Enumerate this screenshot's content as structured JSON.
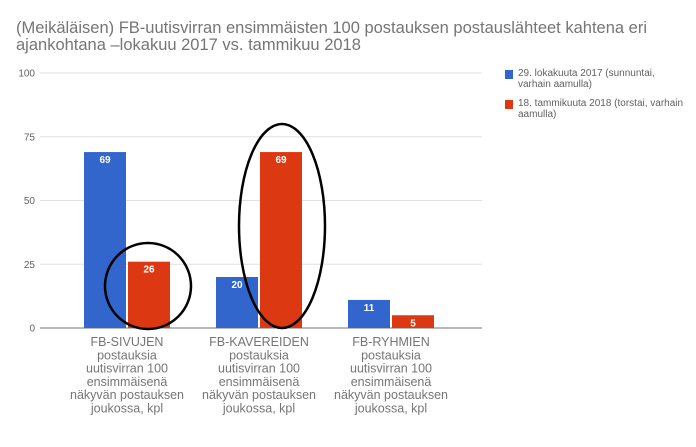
{
  "chart_data": {
    "type": "bar",
    "title": "(Meikäläisen) FB-uutisvirran ensimmäisten 100 postauksen postauslähteet kahtena eri ajankohtana –lokakuu 2017 vs. tammikuu 2018",
    "categories": [
      [
        "FB-SIVUJEN",
        "postauksia",
        "uutisvirran 100",
        "ensimmäisenä",
        "näkyvän postauksen",
        "joukossa, kpl"
      ],
      [
        "FB-KAVEREIDEN",
        "postauksia",
        "uutisvirran 100",
        "ensimmäisenä",
        "näkyvän postauksen",
        "joukossa, kpl"
      ],
      [
        "FB-RYHMIEN",
        "postauksia",
        "uutisvirran 100",
        "ensimmäisenä",
        "näkyvän postauksen",
        "joukossa, kpl"
      ]
    ],
    "series": [
      {
        "name": "29. lokakuuta 2017 (sunnuntai, varhain aamulla)",
        "values": [
          69,
          20,
          11
        ],
        "color": "#3366cc"
      },
      {
        "name": "18. tammikuuta 2018 (torstai, varhain aamulla)",
        "values": [
          26,
          69,
          5
        ],
        "color": "#dc3912"
      }
    ],
    "ylim": [
      0,
      100
    ],
    "yticks": [
      0,
      25,
      50,
      75,
      100
    ],
    "data_labels": true,
    "grid": true,
    "legend_position": "right",
    "annotations": [
      "hand-drawn circle around FB-SIVUJEN 2018 bar",
      "hand-drawn ellipse around FB-KAVEREIDEN 2018 bar"
    ]
  }
}
